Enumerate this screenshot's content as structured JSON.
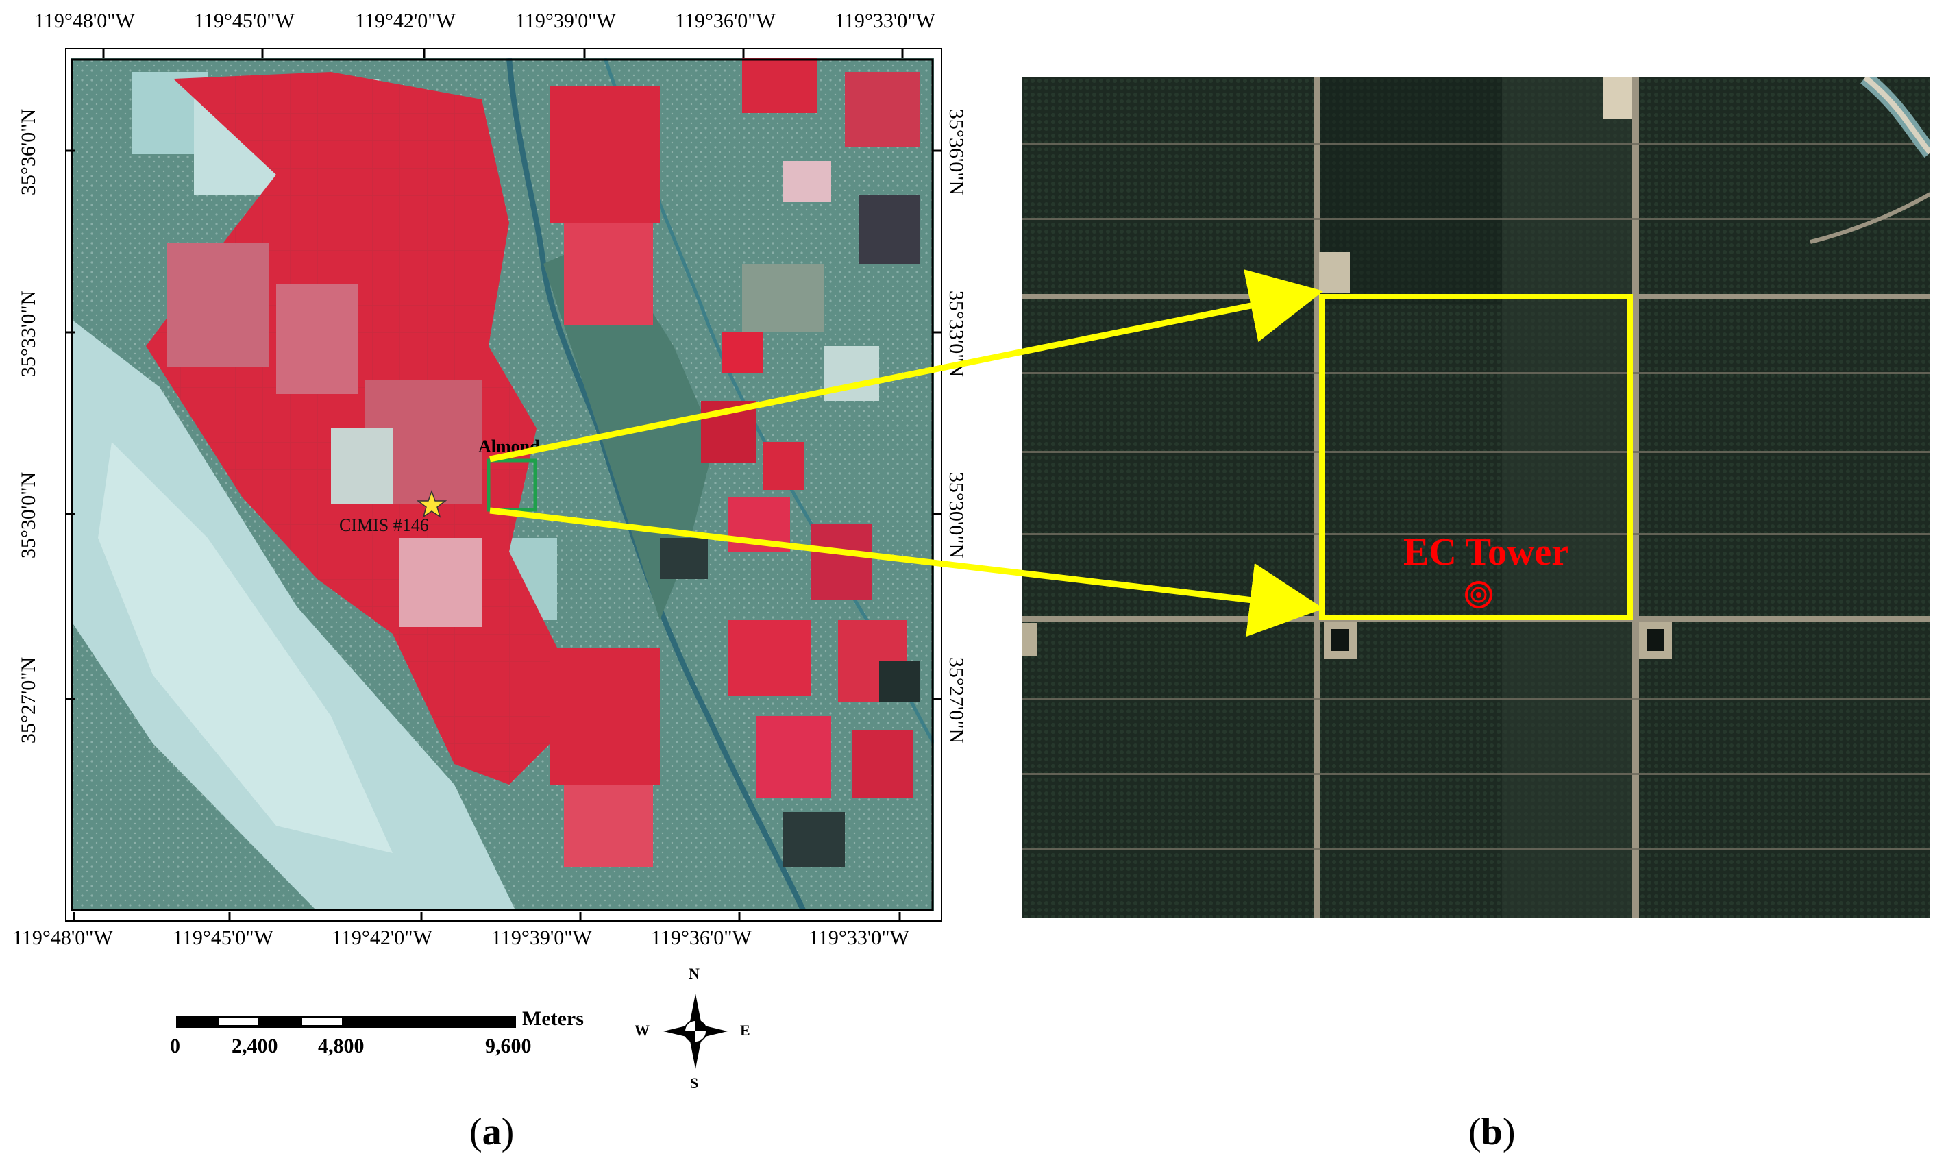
{
  "panel_a": {
    "label": "a",
    "top_longitudes": [
      "119°48'0\"W",
      "119°45'0\"W",
      "119°42'0\"W",
      "119°39'0\"W",
      "119°36'0\"W",
      "119°33'0\"W"
    ],
    "bottom_longitudes": [
      "119°48'0\"W",
      "119°45'0\"W",
      "119°42'0\"W",
      "119°39'0\"W",
      "119°36'0\"W",
      "119°33'0\"W"
    ],
    "left_latitudes": [
      "35°36'0\"N",
      "35°33'0\"N",
      "35°30'0\"N",
      "35°27'0\"N"
    ],
    "right_latitudes": [
      "35°36'0\"N",
      "35°33'0\"N",
      "35°30'0\"N",
      "35°27'0\"N"
    ],
    "almond_label": "Almond",
    "station_label": "CIMIS #146",
    "scale_bar": {
      "unit": "Meters",
      "ticks": [
        "0",
        "2,400",
        "4,800",
        "9,600"
      ]
    },
    "compass": {
      "n": "N",
      "s": "S",
      "e": "E",
      "w": "W"
    }
  },
  "panel_b": {
    "label": "b",
    "tower_label": "EC Tower"
  },
  "colors": {
    "crop_red": "#d8283f",
    "highlight_yellow": "#ffff00",
    "study_box_green": "#1ea04b",
    "tower_red": "#ff0000",
    "orchard_dark": "#1d2a22"
  }
}
